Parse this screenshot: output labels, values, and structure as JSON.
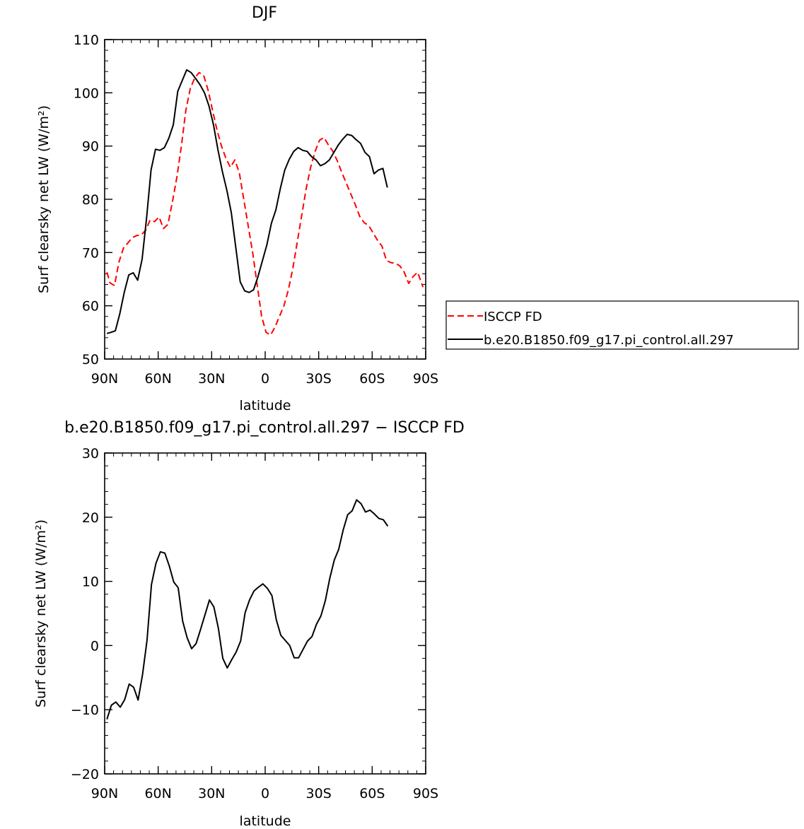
{
  "chart_data": [
    {
      "type": "line",
      "title": "DJF",
      "xlabel": "latitude",
      "ylabel": "Surf clearsky net LW (W/m²)",
      "xlim": [
        -90,
        90
      ],
      "ylim": [
        50,
        110
      ],
      "xticks": [
        -90,
        -60,
        -30,
        0,
        30,
        60,
        90
      ],
      "xtick_labels": [
        "90N",
        "60N",
        "30N",
        "0",
        "30S",
        "60S",
        "90S"
      ],
      "yticks": [
        50,
        60,
        70,
        80,
        90,
        100,
        110
      ],
      "ytick_labels": [
        "50",
        "60",
        "70",
        "80",
        "90",
        "100",
        "110"
      ],
      "legend_position": "right",
      "series": [
        {
          "name": "ISCCP FD",
          "color": "#ff0000",
          "dash": "dashed",
          "points": [
            [
              -88.75,
              66.3
            ],
            [
              -87,
              64.3
            ],
            [
              -84.5,
              63.8
            ],
            [
              -82,
              68.2
            ],
            [
              -79.5,
              70.8
            ],
            [
              -77,
              71.8
            ],
            [
              -74.5,
              72.8
            ],
            [
              -72,
              73.2
            ],
            [
              -69.5,
              73.3
            ],
            [
              -67,
              74.2
            ],
            [
              -64.5,
              76.1
            ],
            [
              -62,
              75.8
            ],
            [
              -59.5,
              76.7
            ],
            [
              -57,
              74.5
            ],
            [
              -54.5,
              75.3
            ],
            [
              -52,
              79.5
            ],
            [
              -49.5,
              84.2
            ],
            [
              -47,
              90
            ],
            [
              -44.5,
              96.7
            ],
            [
              -42,
              100.8
            ],
            [
              -39.5,
              102.8
            ],
            [
              -37,
              103.8
            ],
            [
              -34.5,
              103.3
            ],
            [
              -32,
              100.5
            ],
            [
              -29.5,
              96.7
            ],
            [
              -27,
              93
            ],
            [
              -24.5,
              90
            ],
            [
              -22,
              87.7
            ],
            [
              -19.5,
              86
            ],
            [
              -17,
              87.4
            ],
            [
              -14.5,
              85
            ],
            [
              -12,
              80
            ],
            [
              -9.5,
              75
            ],
            [
              -7,
              70
            ],
            [
              -4.5,
              64
            ],
            [
              -2,
              58
            ],
            [
              0.5,
              55
            ],
            [
              3,
              54.5
            ],
            [
              5.5,
              56
            ],
            [
              8,
              58
            ],
            [
              10.5,
              60
            ],
            [
              13,
              63
            ],
            [
              15.5,
              67
            ],
            [
              18,
              72
            ],
            [
              20.5,
              77
            ],
            [
              23,
              82
            ],
            [
              25.5,
              86
            ],
            [
              28,
              89
            ],
            [
              30.5,
              91.1
            ],
            [
              33,
              91.6
            ],
            [
              35.5,
              90.2
            ],
            [
              38,
              89
            ],
            [
              40.5,
              87.2
            ],
            [
              43,
              85
            ],
            [
              45.5,
              83
            ],
            [
              48,
              81
            ],
            [
              50.5,
              79
            ],
            [
              53,
              76.8
            ],
            [
              55.5,
              75.6
            ],
            [
              58,
              75.1
            ],
            [
              60.5,
              73.7
            ],
            [
              63,
              72.3
            ],
            [
              65.5,
              71.2
            ],
            [
              68,
              68.5
            ],
            [
              70.5,
              68.1
            ],
            [
              73,
              68
            ],
            [
              75.5,
              67.5
            ],
            [
              78,
              66.3
            ],
            [
              80.5,
              64.2
            ],
            [
              83,
              65.5
            ],
            [
              85.5,
              66.3
            ],
            [
              88.5,
              63.5
            ]
          ]
        },
        {
          "name": "b.e20.B1850.f09_g17.pi_control.all.297",
          "color": "#000000",
          "dash": "solid",
          "points": [
            [
              -88.75,
              54.8
            ],
            [
              -86.5,
              55
            ],
            [
              -84,
              55.3
            ],
            [
              -81.5,
              58.5
            ],
            [
              -79,
              62.5
            ],
            [
              -76.5,
              65.8
            ],
            [
              -74,
              66.2
            ],
            [
              -71.5,
              64.8
            ],
            [
              -69,
              68.8
            ],
            [
              -66.5,
              76.5
            ],
            [
              -64,
              85.5
            ],
            [
              -61.5,
              89.4
            ],
            [
              -59,
              89.2
            ],
            [
              -56.5,
              89.7
            ],
            [
              -54,
              91.5
            ],
            [
              -51.5,
              94
            ],
            [
              -49,
              100.3
            ],
            [
              -46.5,
              102.3
            ],
            [
              -44,
              104.3
            ],
            [
              -41.5,
              103.8
            ],
            [
              -39,
              102.7
            ],
            [
              -36.5,
              101.5
            ],
            [
              -34,
              100
            ],
            [
              -31.5,
              97.5
            ],
            [
              -29,
              94
            ],
            [
              -26.5,
              89.3
            ],
            [
              -24,
              85.2
            ],
            [
              -21.5,
              81.7
            ],
            [
              -19,
              77.5
            ],
            [
              -16.5,
              71
            ],
            [
              -14,
              64.5
            ],
            [
              -11.5,
              62.8
            ],
            [
              -9,
              62.5
            ],
            [
              -6.5,
              63
            ],
            [
              -4,
              65.5
            ],
            [
              -1.5,
              68.5
            ],
            [
              1,
              71.5
            ],
            [
              3.5,
              75.5
            ],
            [
              6,
              78
            ],
            [
              8.5,
              82
            ],
            [
              11,
              85.5
            ],
            [
              13.5,
              87.5
            ],
            [
              16,
              89
            ],
            [
              18.5,
              89.7
            ],
            [
              21,
              89.2
            ],
            [
              23.5,
              89
            ],
            [
              26,
              88
            ],
            [
              28.5,
              87.4
            ],
            [
              31,
              86.3
            ],
            [
              33.5,
              86.7
            ],
            [
              36,
              87.4
            ],
            [
              38.5,
              88.8
            ],
            [
              41,
              90.2
            ],
            [
              43.5,
              91.3
            ],
            [
              46,
              92.2
            ],
            [
              48.5,
              92
            ],
            [
              51,
              91.2
            ],
            [
              53.5,
              90.5
            ],
            [
              56,
              88.8
            ],
            [
              58.5,
              88
            ],
            [
              61,
              84.8
            ],
            [
              63.5,
              85.5
            ],
            [
              66,
              85.8
            ],
            [
              68.5,
              82.2
            ]
          ]
        }
      ]
    },
    {
      "type": "line",
      "title": "b.e20.B1850.f09_g17.pi_control.all.297 − ISCCP FD",
      "xlabel": "latitude",
      "ylabel": "Surf clearsky net LW (W/m²)",
      "xlim": [
        -90,
        90
      ],
      "ylim": [
        -20,
        30
      ],
      "xticks": [
        -90,
        -60,
        -30,
        0,
        30,
        60,
        90
      ],
      "xtick_labels": [
        "90N",
        "60N",
        "30N",
        "0",
        "30S",
        "60S",
        "90S"
      ],
      "yticks": [
        -20,
        -10,
        0,
        10,
        20,
        30
      ],
      "ytick_labels": [
        "−20",
        "−10",
        "0",
        "10",
        "20",
        "30"
      ],
      "series": [
        {
          "color": "#000000",
          "dash": "solid",
          "points": [
            [
              -88.75,
              -11.5
            ],
            [
              -86.25,
              -9.3
            ],
            [
              -83.75,
              -8.8
            ],
            [
              -81.25,
              -9.6
            ],
            [
              -78.75,
              -8.4
            ],
            [
              -76.25,
              -6
            ],
            [
              -73.75,
              -6.5
            ],
            [
              -71.25,
              -8.5
            ],
            [
              -68.75,
              -4.5
            ],
            [
              -66.25,
              0.8
            ],
            [
              -63.75,
              9.5
            ],
            [
              -61.25,
              12.8
            ],
            [
              -58.75,
              14.6
            ],
            [
              -56.25,
              14.4
            ],
            [
              -53.75,
              12.4
            ],
            [
              -51.25,
              9.9
            ],
            [
              -48.75,
              9
            ],
            [
              -46.25,
              3.8
            ],
            [
              -43.75,
              1.2
            ],
            [
              -41.25,
              -0.5
            ],
            [
              -38.75,
              0.3
            ],
            [
              -36.25,
              2.5
            ],
            [
              -33.75,
              4.8
            ],
            [
              -31.25,
              7.1
            ],
            [
              -28.75,
              6
            ],
            [
              -26.25,
              2.7
            ],
            [
              -23.75,
              -2
            ],
            [
              -21.25,
              -3.5
            ],
            [
              -18.75,
              -2.2
            ],
            [
              -16.25,
              -1
            ],
            [
              -13.75,
              0.7
            ],
            [
              -11.25,
              5.1
            ],
            [
              -8.75,
              7.1
            ],
            [
              -6.25,
              8.5
            ],
            [
              -3.75,
              9.1
            ],
            [
              -1.25,
              9.6
            ],
            [
              1.25,
              8.9
            ],
            [
              3.75,
              7.8
            ],
            [
              6.25,
              4
            ],
            [
              8.75,
              1.6
            ],
            [
              11.25,
              0.8
            ],
            [
              13.75,
              0
            ],
            [
              16.25,
              -1.9
            ],
            [
              18.75,
              -1.9
            ],
            [
              21.25,
              -0.6
            ],
            [
              23.75,
              0.7
            ],
            [
              26.25,
              1.4
            ],
            [
              28.75,
              3.3
            ],
            [
              31.25,
              4.6
            ],
            [
              33.75,
              7
            ],
            [
              36.25,
              10.5
            ],
            [
              38.75,
              13.3
            ],
            [
              41.25,
              15
            ],
            [
              43.75,
              18
            ],
            [
              46.25,
              20.4
            ],
            [
              48.75,
              21
            ],
            [
              51.25,
              22.7
            ],
            [
              53.75,
              22.1
            ],
            [
              56.25,
              20.8
            ],
            [
              58.75,
              21.1
            ],
            [
              61.25,
              20.5
            ],
            [
              63.75,
              19.8
            ],
            [
              66.25,
              19.6
            ],
            [
              68.75,
              18.6
            ]
          ]
        }
      ]
    }
  ]
}
